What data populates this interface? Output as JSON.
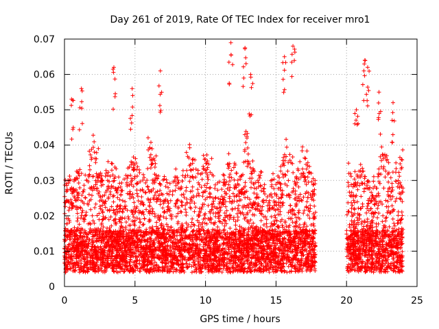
{
  "chart_data": {
    "type": "scatter",
    "title": "Day 261 of 2019, Rate Of TEC Index for receiver mro1",
    "xlabel": "GPS time / hours",
    "ylabel": "ROTI / TECUs",
    "xlim": [
      0,
      25
    ],
    "ylim": [
      0,
      0.07
    ],
    "grid": true,
    "marker": "+",
    "series_color": "#ff0000",
    "x_ticks": [
      0,
      5,
      10,
      15,
      20,
      25
    ],
    "x_tick_labels": [
      "0",
      "5",
      "10",
      "15",
      "20",
      "25"
    ],
    "y_ticks": [
      0,
      0.01,
      0.02,
      0.03,
      0.04,
      0.05,
      0.06,
      0.07
    ],
    "y_tick_labels": [
      "0",
      "0.01",
      "0.02",
      "0.03",
      "0.04",
      "0.05",
      "0.06",
      "0.07"
    ],
    "data_segments": [
      {
        "x_start": 0.0,
        "x_end": 17.8
      },
      {
        "x_start": 20.0,
        "x_end": 24.0
      }
    ],
    "typical_range": [
      0.005,
      0.035
    ],
    "notable_peaks": [
      {
        "x": 0.5,
        "y": 0.053
      },
      {
        "x": 1.2,
        "y": 0.056
      },
      {
        "x": 3.5,
        "y": 0.062
      },
      {
        "x": 4.8,
        "y": 0.056
      },
      {
        "x": 6.8,
        "y": 0.061
      },
      {
        "x": 11.8,
        "y": 0.069
      },
      {
        "x": 12.8,
        "y": 0.0675
      },
      {
        "x": 13.2,
        "y": 0.06
      },
      {
        "x": 15.6,
        "y": 0.065
      },
      {
        "x": 16.2,
        "y": 0.068
      },
      {
        "x": 20.7,
        "y": 0.05
      },
      {
        "x": 21.3,
        "y": 0.064
      },
      {
        "x": 21.5,
        "y": 0.062
      },
      {
        "x": 22.3,
        "y": 0.055
      },
      {
        "x": 23.3,
        "y": 0.052
      }
    ]
  }
}
